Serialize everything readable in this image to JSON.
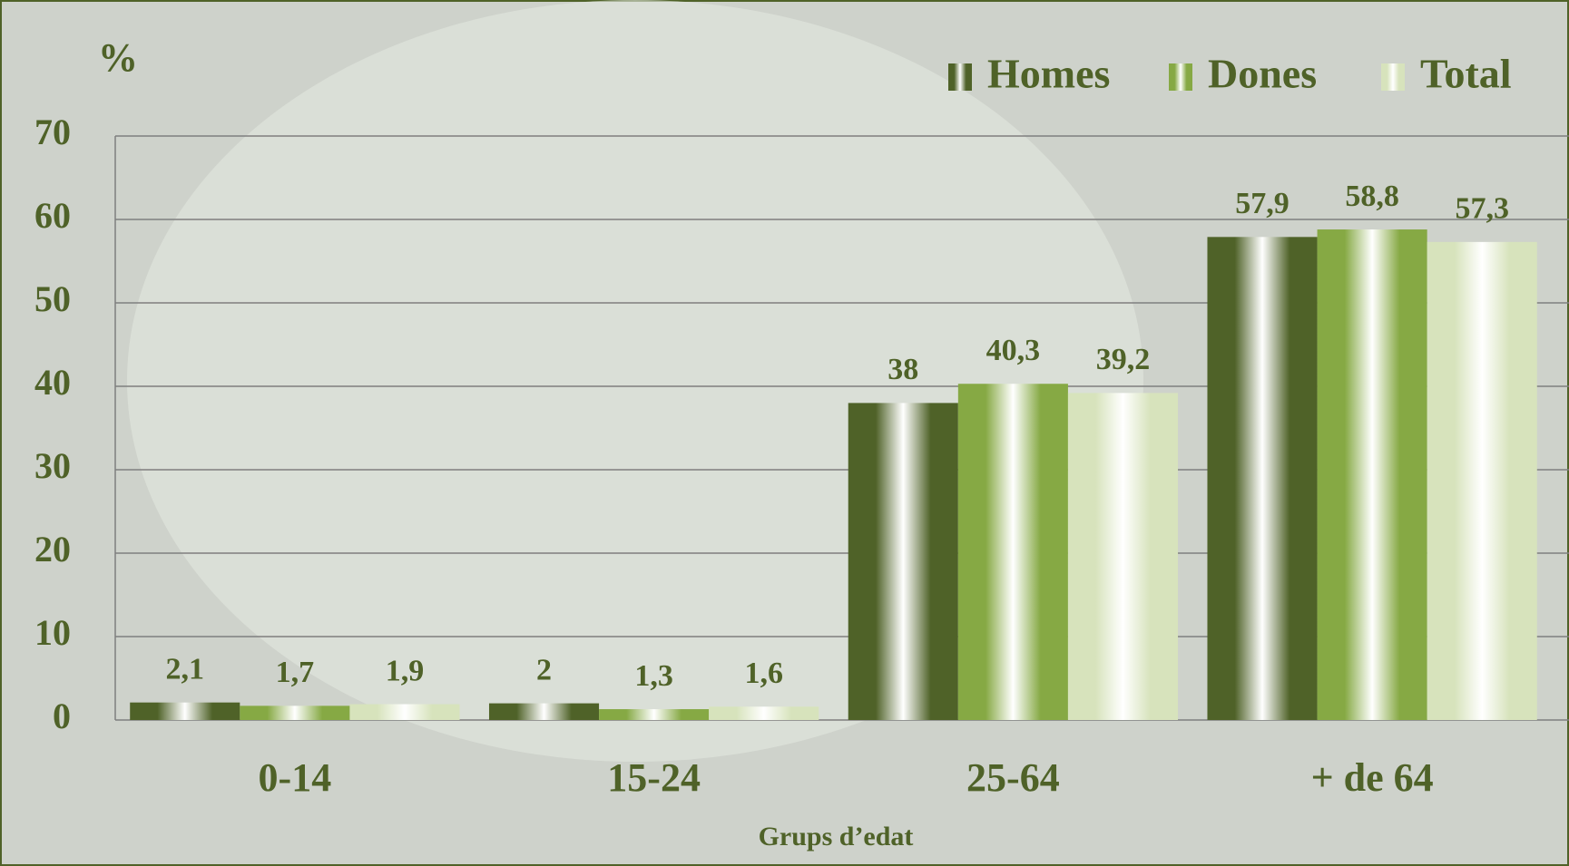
{
  "chart_data": {
    "type": "bar",
    "y_axis_label": "%",
    "x_axis_label": "Grups d’edat",
    "categories": [
      "0-14",
      "15-24",
      "25-64",
      "+ de 64"
    ],
    "series": [
      {
        "name": "Homes",
        "color": "#4f6228",
        "values": [
          2.1,
          2,
          38,
          57.9
        ],
        "value_labels": [
          "2,1",
          "2",
          "38",
          "57,9"
        ]
      },
      {
        "name": "Dones",
        "color": "#86a944",
        "values": [
          1.7,
          1.3,
          40.3,
          58.8
        ],
        "value_labels": [
          "1,7",
          "1,3",
          "40,3",
          "58,8"
        ]
      },
      {
        "name": "Total",
        "color": "#d7e3bc",
        "values": [
          1.9,
          1.6,
          39.2,
          57.3
        ],
        "value_labels": [
          "1,9",
          "1,6",
          "39,2",
          "57,3"
        ]
      }
    ],
    "ylim": [
      0,
      70
    ],
    "yticks": [
      0,
      10,
      20,
      30,
      40,
      50,
      60,
      70
    ],
    "grid": true,
    "legend": "top-right"
  }
}
